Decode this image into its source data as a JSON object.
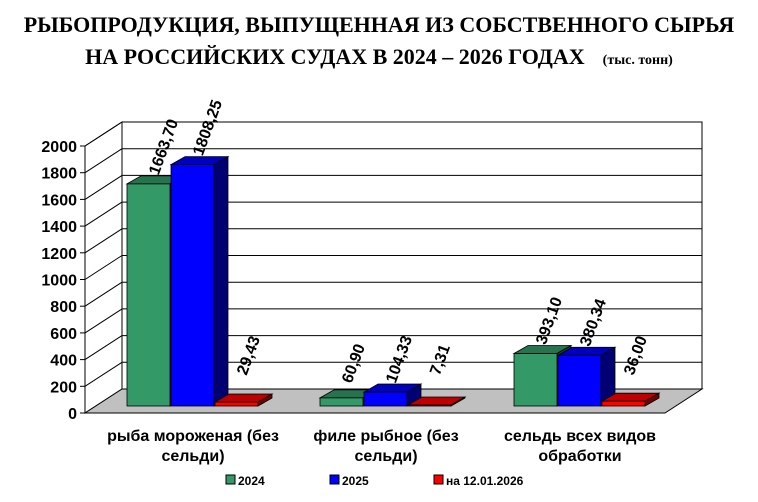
{
  "chart_data": {
    "type": "bar",
    "title_line1": "РЫБОПРОДУКЦИЯ, ВЫПУЩЕННАЯ ИЗ СОБСТВЕННОГО СЫРЬЯ",
    "title_line2": "НА РОССИЙСКИХ СУДАХ В 2024 – 2026 ГОДАХ",
    "unit": "(тыс. тонн)",
    "categories": [
      [
        "рыба мороженая (без",
        "сельди)"
      ],
      [
        "филе рыбное (без",
        "сельди)"
      ],
      [
        "сельдь всех видов",
        "обработки"
      ]
    ],
    "series": [
      {
        "name": "2024",
        "color": "#339966",
        "values": [
          1663.7,
          60.9,
          393.1
        ],
        "labels": [
          "1663,70",
          "60,90",
          "393,10"
        ]
      },
      {
        "name": "2025",
        "color": "#0000ff",
        "values": [
          1808.25,
          104.33,
          380.34
        ],
        "labels": [
          "1808,25",
          "104,33",
          "380,34"
        ]
      },
      {
        "name": "на 12.01.2026",
        "color": "#ff0000",
        "values": [
          29.43,
          7.31,
          36.0
        ],
        "labels": [
          "29,43",
          "7,31",
          "36,00"
        ]
      }
    ],
    "ylim": [
      0,
      2000
    ],
    "yticks": [
      "0",
      "200",
      "400",
      "600",
      "800",
      "1000",
      "1200",
      "1400",
      "1600",
      "1800",
      "2000"
    ],
    "grid": true,
    "legend": "bottom",
    "style": "3d"
  }
}
